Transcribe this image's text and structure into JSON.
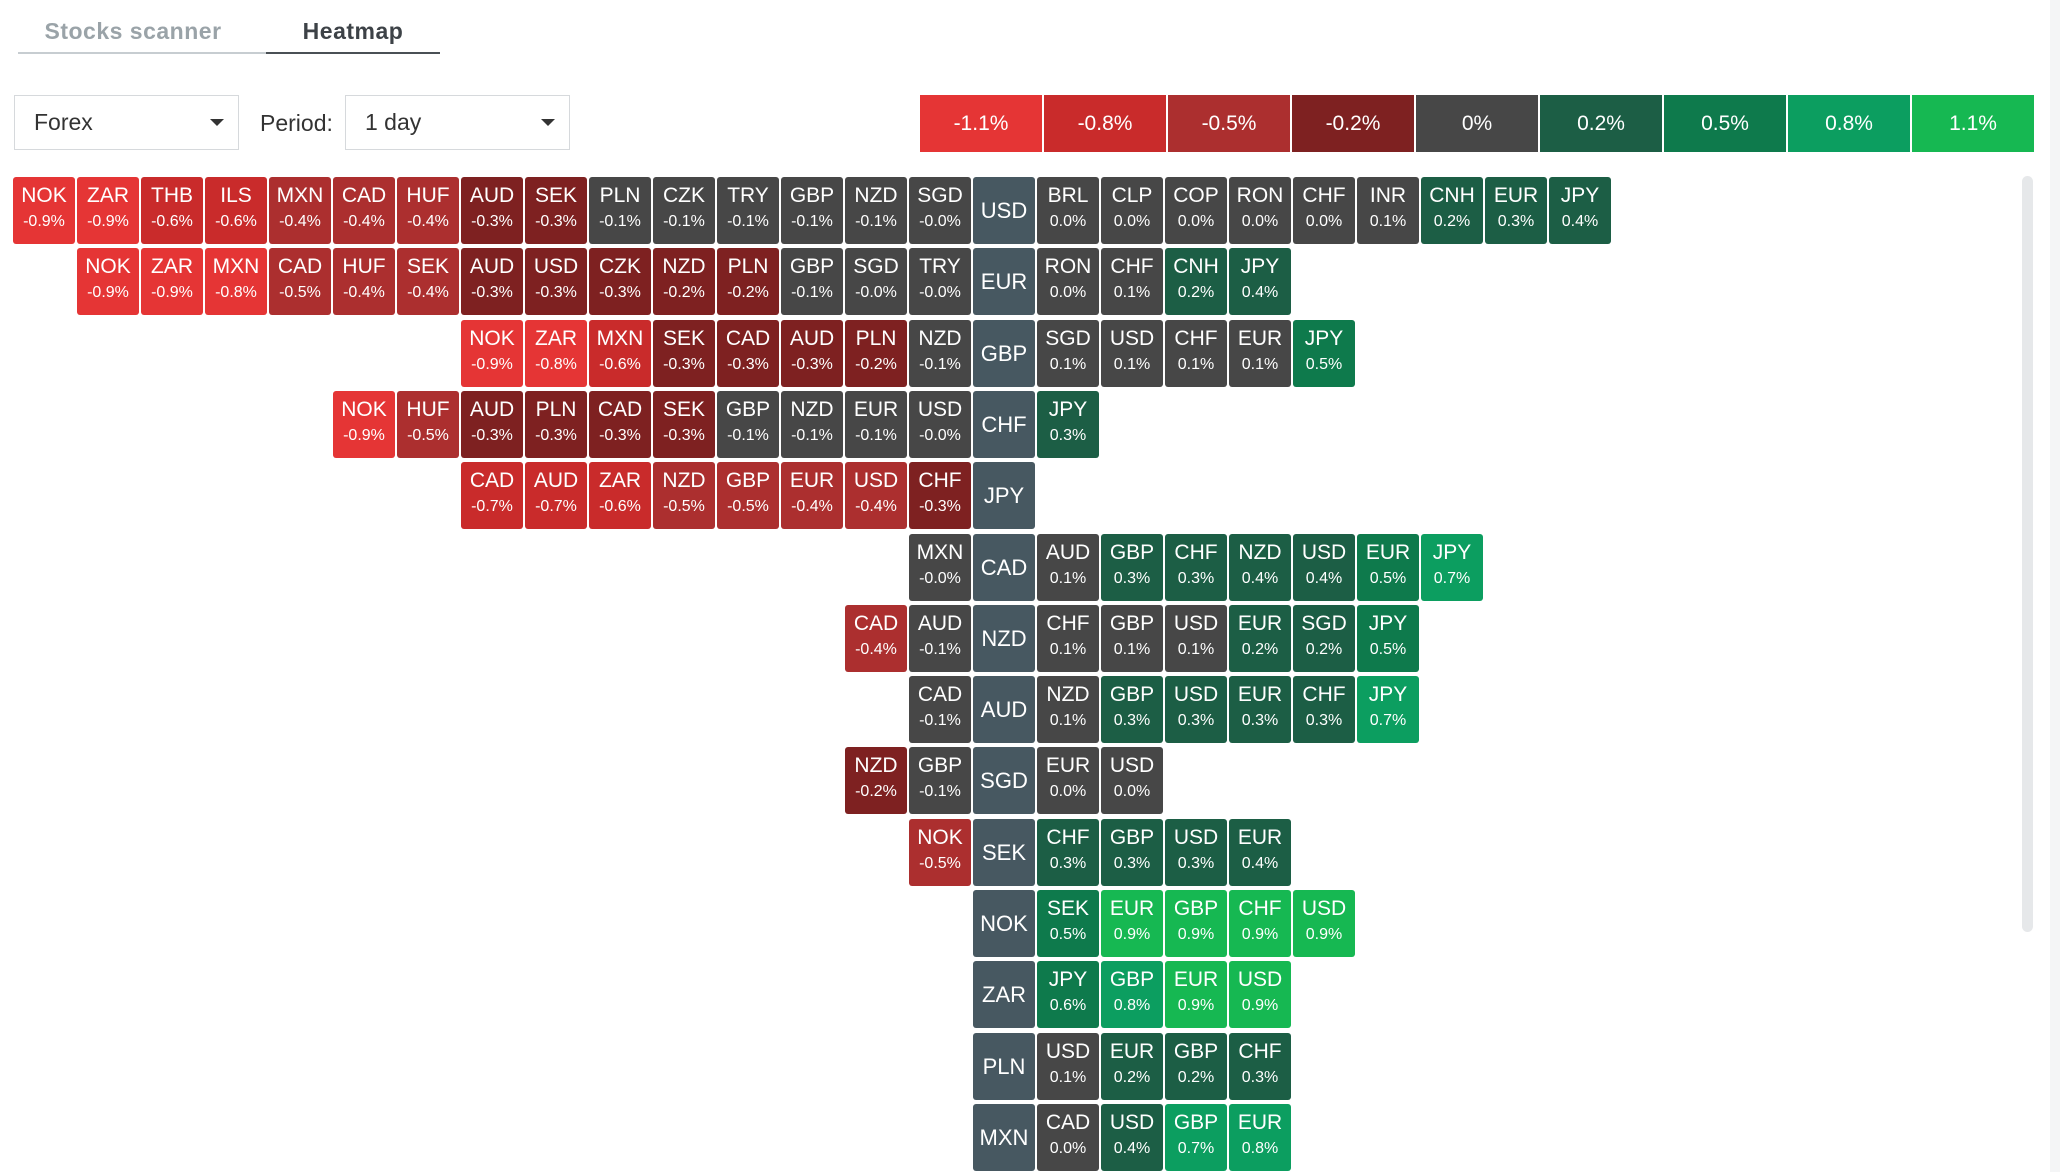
{
  "tabs": [
    {
      "label": "Stocks scanner",
      "active": false
    },
    {
      "label": "Heatmap",
      "active": true
    }
  ],
  "market_select": {
    "value": "Forex"
  },
  "period": {
    "label": "Period:",
    "value": "1 day"
  },
  "legend": [
    {
      "label": "-1.1%",
      "color": "#e53535"
    },
    {
      "label": "-0.8%",
      "color": "#c92b2b"
    },
    {
      "label": "-0.5%",
      "color": "#ac2f2f"
    },
    {
      "label": "-0.2%",
      "color": "#7e2121"
    },
    {
      "label": "0%",
      "color": "#474747"
    },
    {
      "label": "0.2%",
      "color": "#1c5e45"
    },
    {
      "label": "0.5%",
      "color": "#0e7a4c"
    },
    {
      "label": "0.8%",
      "color": "#0c9e60"
    },
    {
      "label": "1.1%",
      "color": "#16b852"
    }
  ],
  "rows": [
    {
      "base": "USD",
      "cells": [
        {
          "s": "NOK",
          "p": "-0.9%"
        },
        {
          "s": "ZAR",
          "p": "-0.9%"
        },
        {
          "s": "THB",
          "p": "-0.6%"
        },
        {
          "s": "ILS",
          "p": "-0.6%"
        },
        {
          "s": "MXN",
          "p": "-0.4%"
        },
        {
          "s": "CAD",
          "p": "-0.4%"
        },
        {
          "s": "HUF",
          "p": "-0.4%"
        },
        {
          "s": "AUD",
          "p": "-0.3%"
        },
        {
          "s": "SEK",
          "p": "-0.3%"
        },
        {
          "s": "PLN",
          "p": "-0.1%"
        },
        {
          "s": "CZK",
          "p": "-0.1%"
        },
        {
          "s": "TRY",
          "p": "-0.1%"
        },
        {
          "s": "GBP",
          "p": "-0.1%"
        },
        {
          "s": "NZD",
          "p": "-0.1%"
        },
        {
          "s": "SGD",
          "p": "-0.0%"
        },
        {
          "base": true
        },
        {
          "s": "BRL",
          "p": "0.0%"
        },
        {
          "s": "CLP",
          "p": "0.0%"
        },
        {
          "s": "COP",
          "p": "0.0%"
        },
        {
          "s": "RON",
          "p": "0.0%"
        },
        {
          "s": "CHF",
          "p": "0.0%"
        },
        {
          "s": "INR",
          "p": "0.1%"
        },
        {
          "s": "CNH",
          "p": "0.2%"
        },
        {
          "s": "EUR",
          "p": "0.3%"
        },
        {
          "s": "JPY",
          "p": "0.4%"
        }
      ]
    },
    {
      "base": "EUR",
      "cells": [
        {
          "s": "NOK",
          "p": "-0.9%"
        },
        {
          "s": "ZAR",
          "p": "-0.9%"
        },
        {
          "s": "MXN",
          "p": "-0.8%"
        },
        {
          "s": "CAD",
          "p": "-0.5%"
        },
        {
          "s": "HUF",
          "p": "-0.4%"
        },
        {
          "s": "SEK",
          "p": "-0.4%"
        },
        {
          "s": "AUD",
          "p": "-0.3%"
        },
        {
          "s": "USD",
          "p": "-0.3%"
        },
        {
          "s": "CZK",
          "p": "-0.3%"
        },
        {
          "s": "NZD",
          "p": "-0.2%"
        },
        {
          "s": "PLN",
          "p": "-0.2%"
        },
        {
          "s": "GBP",
          "p": "-0.1%"
        },
        {
          "s": "SGD",
          "p": "-0.0%"
        },
        {
          "s": "TRY",
          "p": "-0.0%"
        },
        {
          "base": true
        },
        {
          "s": "RON",
          "p": "0.0%"
        },
        {
          "s": "CHF",
          "p": "0.1%"
        },
        {
          "s": "CNH",
          "p": "0.2%"
        },
        {
          "s": "JPY",
          "p": "0.4%"
        }
      ]
    },
    {
      "base": "GBP",
      "cells": [
        {
          "s": "NOK",
          "p": "-0.9%"
        },
        {
          "s": "ZAR",
          "p": "-0.8%"
        },
        {
          "s": "MXN",
          "p": "-0.6%"
        },
        {
          "s": "SEK",
          "p": "-0.3%"
        },
        {
          "s": "CAD",
          "p": "-0.3%"
        },
        {
          "s": "AUD",
          "p": "-0.3%"
        },
        {
          "s": "PLN",
          "p": "-0.2%"
        },
        {
          "s": "NZD",
          "p": "-0.1%"
        },
        {
          "base": true
        },
        {
          "s": "SGD",
          "p": "0.1%"
        },
        {
          "s": "USD",
          "p": "0.1%"
        },
        {
          "s": "CHF",
          "p": "0.1%"
        },
        {
          "s": "EUR",
          "p": "0.1%"
        },
        {
          "s": "JPY",
          "p": "0.5%"
        }
      ]
    },
    {
      "base": "CHF",
      "cells": [
        {
          "s": "NOK",
          "p": "-0.9%"
        },
        {
          "s": "HUF",
          "p": "-0.5%"
        },
        {
          "s": "AUD",
          "p": "-0.3%"
        },
        {
          "s": "PLN",
          "p": "-0.3%"
        },
        {
          "s": "CAD",
          "p": "-0.3%"
        },
        {
          "s": "SEK",
          "p": "-0.3%"
        },
        {
          "s": "GBP",
          "p": "-0.1%"
        },
        {
          "s": "NZD",
          "p": "-0.1%"
        },
        {
          "s": "EUR",
          "p": "-0.1%"
        },
        {
          "s": "USD",
          "p": "-0.0%"
        },
        {
          "base": true
        },
        {
          "s": "JPY",
          "p": "0.3%"
        }
      ]
    },
    {
      "base": "JPY",
      "cells": [
        {
          "s": "CAD",
          "p": "-0.7%"
        },
        {
          "s": "AUD",
          "p": "-0.7%"
        },
        {
          "s": "ZAR",
          "p": "-0.6%"
        },
        {
          "s": "NZD",
          "p": "-0.5%"
        },
        {
          "s": "GBP",
          "p": "-0.5%"
        },
        {
          "s": "EUR",
          "p": "-0.4%"
        },
        {
          "s": "USD",
          "p": "-0.4%"
        },
        {
          "s": "CHF",
          "p": "-0.3%"
        },
        {
          "base": true
        }
      ]
    },
    {
      "base": "CAD",
      "cells": [
        {
          "s": "MXN",
          "p": "-0.0%"
        },
        {
          "base": true
        },
        {
          "s": "AUD",
          "p": "0.1%"
        },
        {
          "s": "GBP",
          "p": "0.3%"
        },
        {
          "s": "CHF",
          "p": "0.3%"
        },
        {
          "s": "NZD",
          "p": "0.4%"
        },
        {
          "s": "USD",
          "p": "0.4%"
        },
        {
          "s": "EUR",
          "p": "0.5%"
        },
        {
          "s": "JPY",
          "p": "0.7%"
        }
      ]
    },
    {
      "base": "NZD",
      "cells": [
        {
          "s": "CAD",
          "p": "-0.4%"
        },
        {
          "s": "AUD",
          "p": "-0.1%"
        },
        {
          "base": true
        },
        {
          "s": "CHF",
          "p": "0.1%"
        },
        {
          "s": "GBP",
          "p": "0.1%"
        },
        {
          "s": "USD",
          "p": "0.1%"
        },
        {
          "s": "EUR",
          "p": "0.2%"
        },
        {
          "s": "SGD",
          "p": "0.2%"
        },
        {
          "s": "JPY",
          "p": "0.5%"
        }
      ]
    },
    {
      "base": "AUD",
      "cells": [
        {
          "s": "CAD",
          "p": "-0.1%"
        },
        {
          "base": true
        },
        {
          "s": "NZD",
          "p": "0.1%"
        },
        {
          "s": "GBP",
          "p": "0.3%"
        },
        {
          "s": "USD",
          "p": "0.3%"
        },
        {
          "s": "EUR",
          "p": "0.3%"
        },
        {
          "s": "CHF",
          "p": "0.3%"
        },
        {
          "s": "JPY",
          "p": "0.7%"
        }
      ]
    },
    {
      "base": "SGD",
      "cells": [
        {
          "s": "NZD",
          "p": "-0.2%"
        },
        {
          "s": "GBP",
          "p": "-0.1%"
        },
        {
          "base": true
        },
        {
          "s": "EUR",
          "p": "0.0%"
        },
        {
          "s": "USD",
          "p": "0.0%"
        }
      ]
    },
    {
      "base": "SEK",
      "cells": [
        {
          "s": "NOK",
          "p": "-0.5%"
        },
        {
          "base": true
        },
        {
          "s": "CHF",
          "p": "0.3%"
        },
        {
          "s": "GBP",
          "p": "0.3%"
        },
        {
          "s": "USD",
          "p": "0.3%"
        },
        {
          "s": "EUR",
          "p": "0.4%"
        }
      ]
    },
    {
      "base": "NOK",
      "cells": [
        {
          "base": true
        },
        {
          "s": "SEK",
          "p": "0.5%"
        },
        {
          "s": "EUR",
          "p": "0.9%"
        },
        {
          "s": "GBP",
          "p": "0.9%"
        },
        {
          "s": "CHF",
          "p": "0.9%"
        },
        {
          "s": "USD",
          "p": "0.9%"
        }
      ]
    },
    {
      "base": "ZAR",
      "cells": [
        {
          "base": true
        },
        {
          "s": "JPY",
          "p": "0.6%"
        },
        {
          "s": "GBP",
          "p": "0.8%"
        },
        {
          "s": "EUR",
          "p": "0.9%"
        },
        {
          "s": "USD",
          "p": "0.9%"
        }
      ]
    },
    {
      "base": "PLN",
      "cells": [
        {
          "base": true
        },
        {
          "s": "USD",
          "p": "0.1%"
        },
        {
          "s": "EUR",
          "p": "0.2%"
        },
        {
          "s": "GBP",
          "p": "0.2%"
        },
        {
          "s": "CHF",
          "p": "0.3%"
        }
      ]
    },
    {
      "base": "MXN",
      "cells": [
        {
          "base": true
        },
        {
          "s": "CAD",
          "p": "0.0%"
        },
        {
          "s": "USD",
          "p": "0.4%"
        },
        {
          "s": "GBP",
          "p": "0.7%"
        },
        {
          "s": "EUR",
          "p": "0.8%"
        }
      ]
    }
  ]
}
